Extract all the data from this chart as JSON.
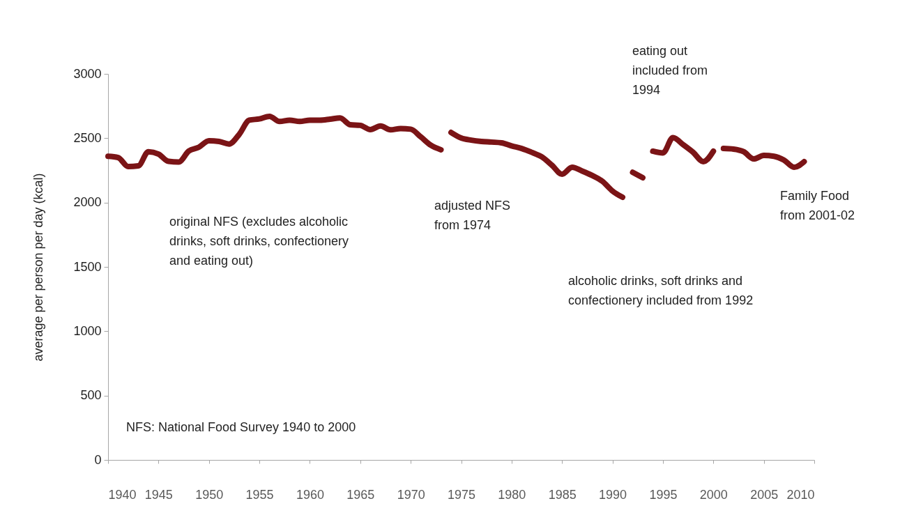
{
  "chart_data": {
    "type": "line",
    "ylabel": "average per person per day  (kcal)",
    "xlim": [
      1940,
      2010
    ],
    "xticks": [
      1940,
      1945,
      1950,
      1955,
      1960,
      1965,
      1970,
      1975,
      1980,
      1985,
      1990,
      1995,
      2000,
      2005,
      2010
    ],
    "ylim": [
      0,
      3000
    ],
    "yticks": [
      0,
      500,
      1000,
      1500,
      2000,
      2500,
      3000
    ],
    "grid": false,
    "series": [
      {
        "color": "#7b1416",
        "x": [
          1940,
          1941,
          1942,
          1943,
          1944,
          1945,
          1946,
          1947,
          1948,
          1949,
          1950,
          1951,
          1952,
          1953,
          1954,
          1955,
          1956,
          1957,
          1958,
          1959,
          1960,
          1961,
          1962,
          1963,
          1964,
          1965,
          1966,
          1967,
          1968,
          1969,
          1970,
          1971,
          1972,
          1973
        ],
        "values": [
          2360,
          2350,
          2280,
          2285,
          2395,
          2377,
          2320,
          2315,
          2400,
          2430,
          2480,
          2475,
          2455,
          2530,
          2640,
          2650,
          2670,
          2630,
          2640,
          2630,
          2640,
          2640,
          2648,
          2658,
          2605,
          2600,
          2567,
          2595,
          2565,
          2575,
          2570,
          2510,
          2445,
          2410
        ]
      },
      {
        "color": "#7b1416",
        "x": [
          1974,
          1975,
          1976,
          1977,
          1978,
          1979,
          1980,
          1981,
          1982,
          1983,
          1984,
          1985,
          1986,
          1987,
          1988,
          1989,
          1990,
          1991
        ],
        "values": [
          2545,
          2502,
          2485,
          2475,
          2470,
          2464,
          2440,
          2420,
          2390,
          2355,
          2290,
          2220,
          2274,
          2245,
          2210,
          2165,
          2090,
          2041
        ]
      },
      {
        "color": "#7b1416",
        "x": [
          1992,
          1993
        ],
        "values": [
          2235,
          2193
        ]
      },
      {
        "color": "#7b1416",
        "x": [
          1994,
          1995,
          1996,
          1997,
          1998,
          1999,
          2000
        ],
        "values": [
          2399,
          2385,
          2505,
          2450,
          2390,
          2318,
          2399
        ]
      },
      {
        "color": "#7b1416",
        "x": [
          2001,
          2002,
          2003,
          2004,
          2005,
          2006,
          2007,
          2008,
          2009
        ],
        "values": [
          2420,
          2415,
          2395,
          2339,
          2366,
          2360,
          2330,
          2274,
          2318
        ]
      }
    ],
    "annotations": [
      "original NFS (excludes alcoholic\ndrinks, soft drinks, confectionery\nand eating out)",
      "adjusted NFS\nfrom 1974",
      "alcoholic drinks, soft drinks and\nconfectionery included from 1992",
      "eating out\nincluded from\n1994",
      "Family Food\nfrom 2001-02",
      "NFS: National Food Survey 1940 to 2000"
    ]
  }
}
